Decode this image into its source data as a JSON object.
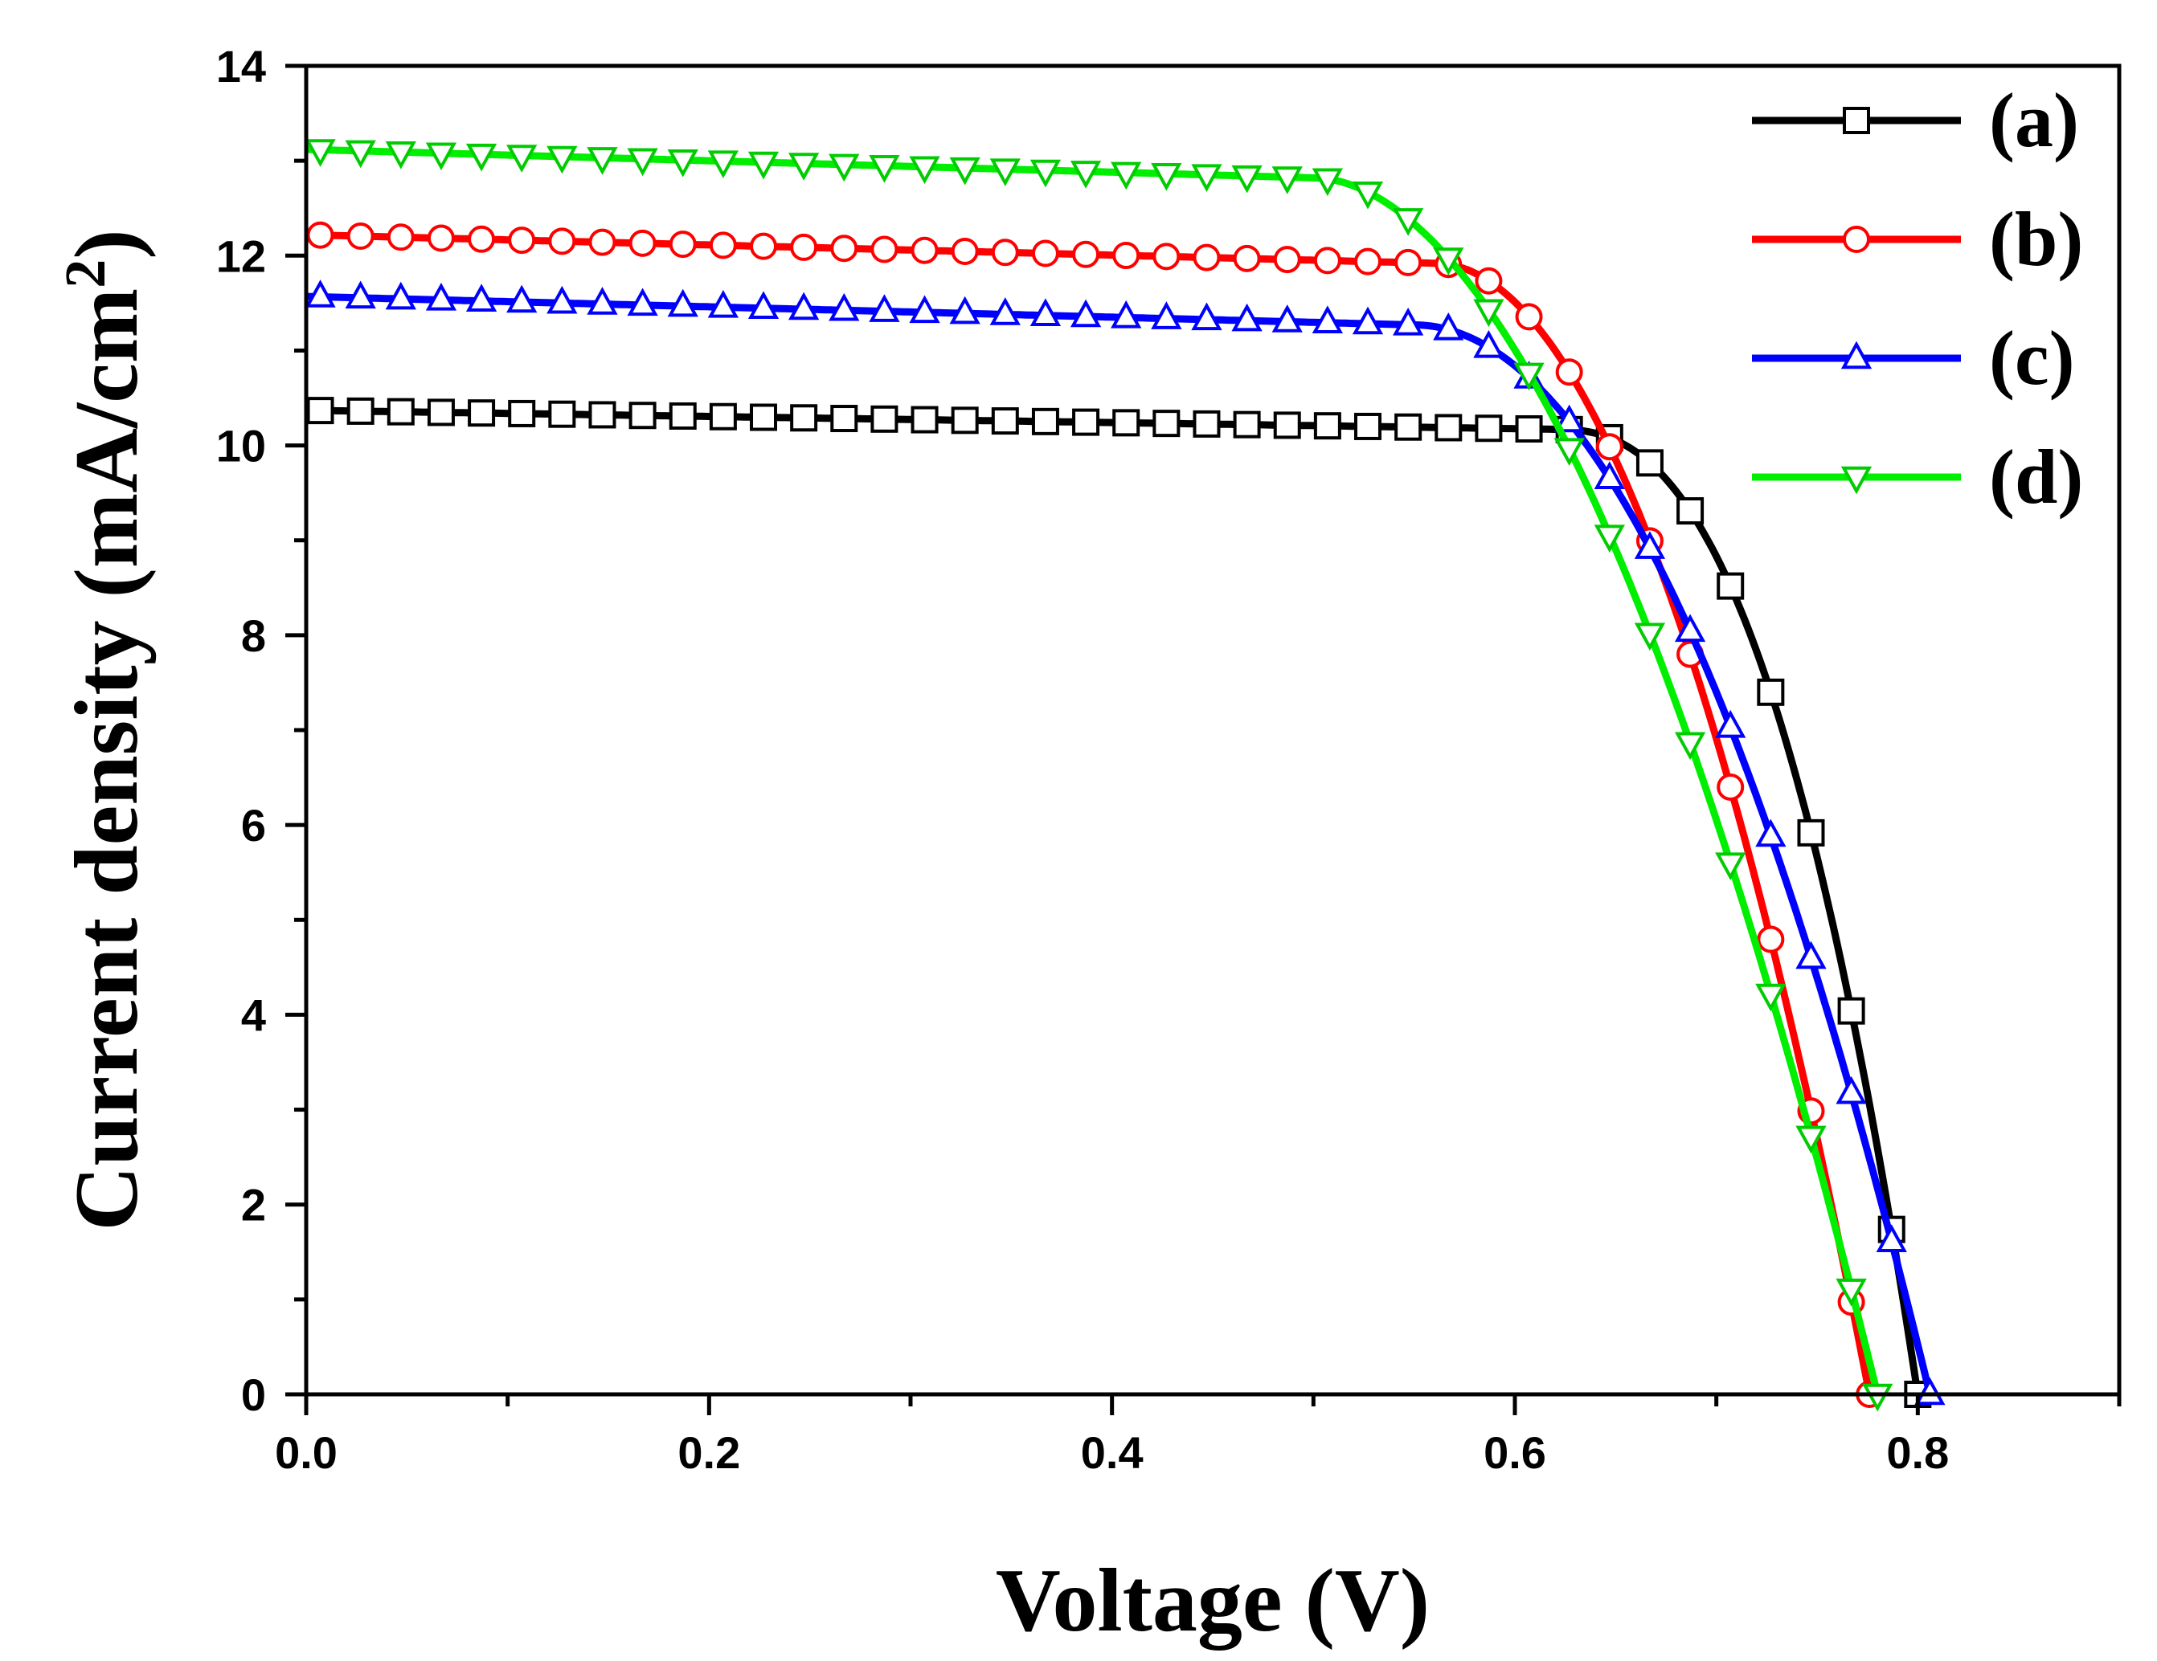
{
  "chart_data": {
    "type": "line",
    "xlabel": "Voltage (V)",
    "ylabel": "Current density (mA/cm",
    "ylabel_superscript": "2",
    "ylabel_suffix": ")",
    "xlim": [
      0.0,
      0.9
    ],
    "ylim": [
      0,
      14
    ],
    "x_major_ticks": [
      0.0,
      0.2,
      0.4,
      0.6,
      0.8
    ],
    "x_tick_labels": [
      "0.0",
      "0.2",
      "0.4",
      "0.6",
      "0.8"
    ],
    "x_minor_ticks": [
      0.1,
      0.3,
      0.5,
      0.7,
      0.9
    ],
    "y_major_ticks": [
      0,
      2,
      4,
      6,
      8,
      10,
      12,
      14
    ],
    "y_tick_labels": [
      "0",
      "2",
      "4",
      "6",
      "8",
      "10",
      "12",
      "14"
    ],
    "y_minor_ticks": [
      1,
      3,
      5,
      7,
      9,
      11,
      13
    ],
    "grid": false,
    "legend_position": "top-right",
    "series": [
      {
        "name": "(a)",
        "color": "#000000",
        "marker": "square",
        "isc": 10.37,
        "voc": 0.8,
        "knee_voltage": 0.62,
        "power_exponent": 2.5,
        "flat_slope": 0.2,
        "marker_spacing": 0.02
      },
      {
        "name": "(b)",
        "color": "#ff0000",
        "marker": "circle",
        "isc": 12.22,
        "voc": 0.776,
        "knee_voltage": 0.56,
        "power_exponent": 2.0,
        "flat_slope": 0.3,
        "marker_spacing": 0.02
      },
      {
        "name": "(c)",
        "color": "#0000ff",
        "marker": "triangle-up",
        "isc": 11.57,
        "voc": 0.806,
        "knee_voltage": 0.55,
        "power_exponent": 2.0,
        "flat_slope": 0.3,
        "marker_spacing": 0.02
      },
      {
        "name": "(d)",
        "color": "#00ee00",
        "marker": "triangle-down",
        "isc": 13.12,
        "voc": 0.78,
        "knee_voltage": 0.5,
        "power_exponent": 1.9,
        "flat_slope": 0.3,
        "marker_spacing": 0.02
      }
    ]
  }
}
